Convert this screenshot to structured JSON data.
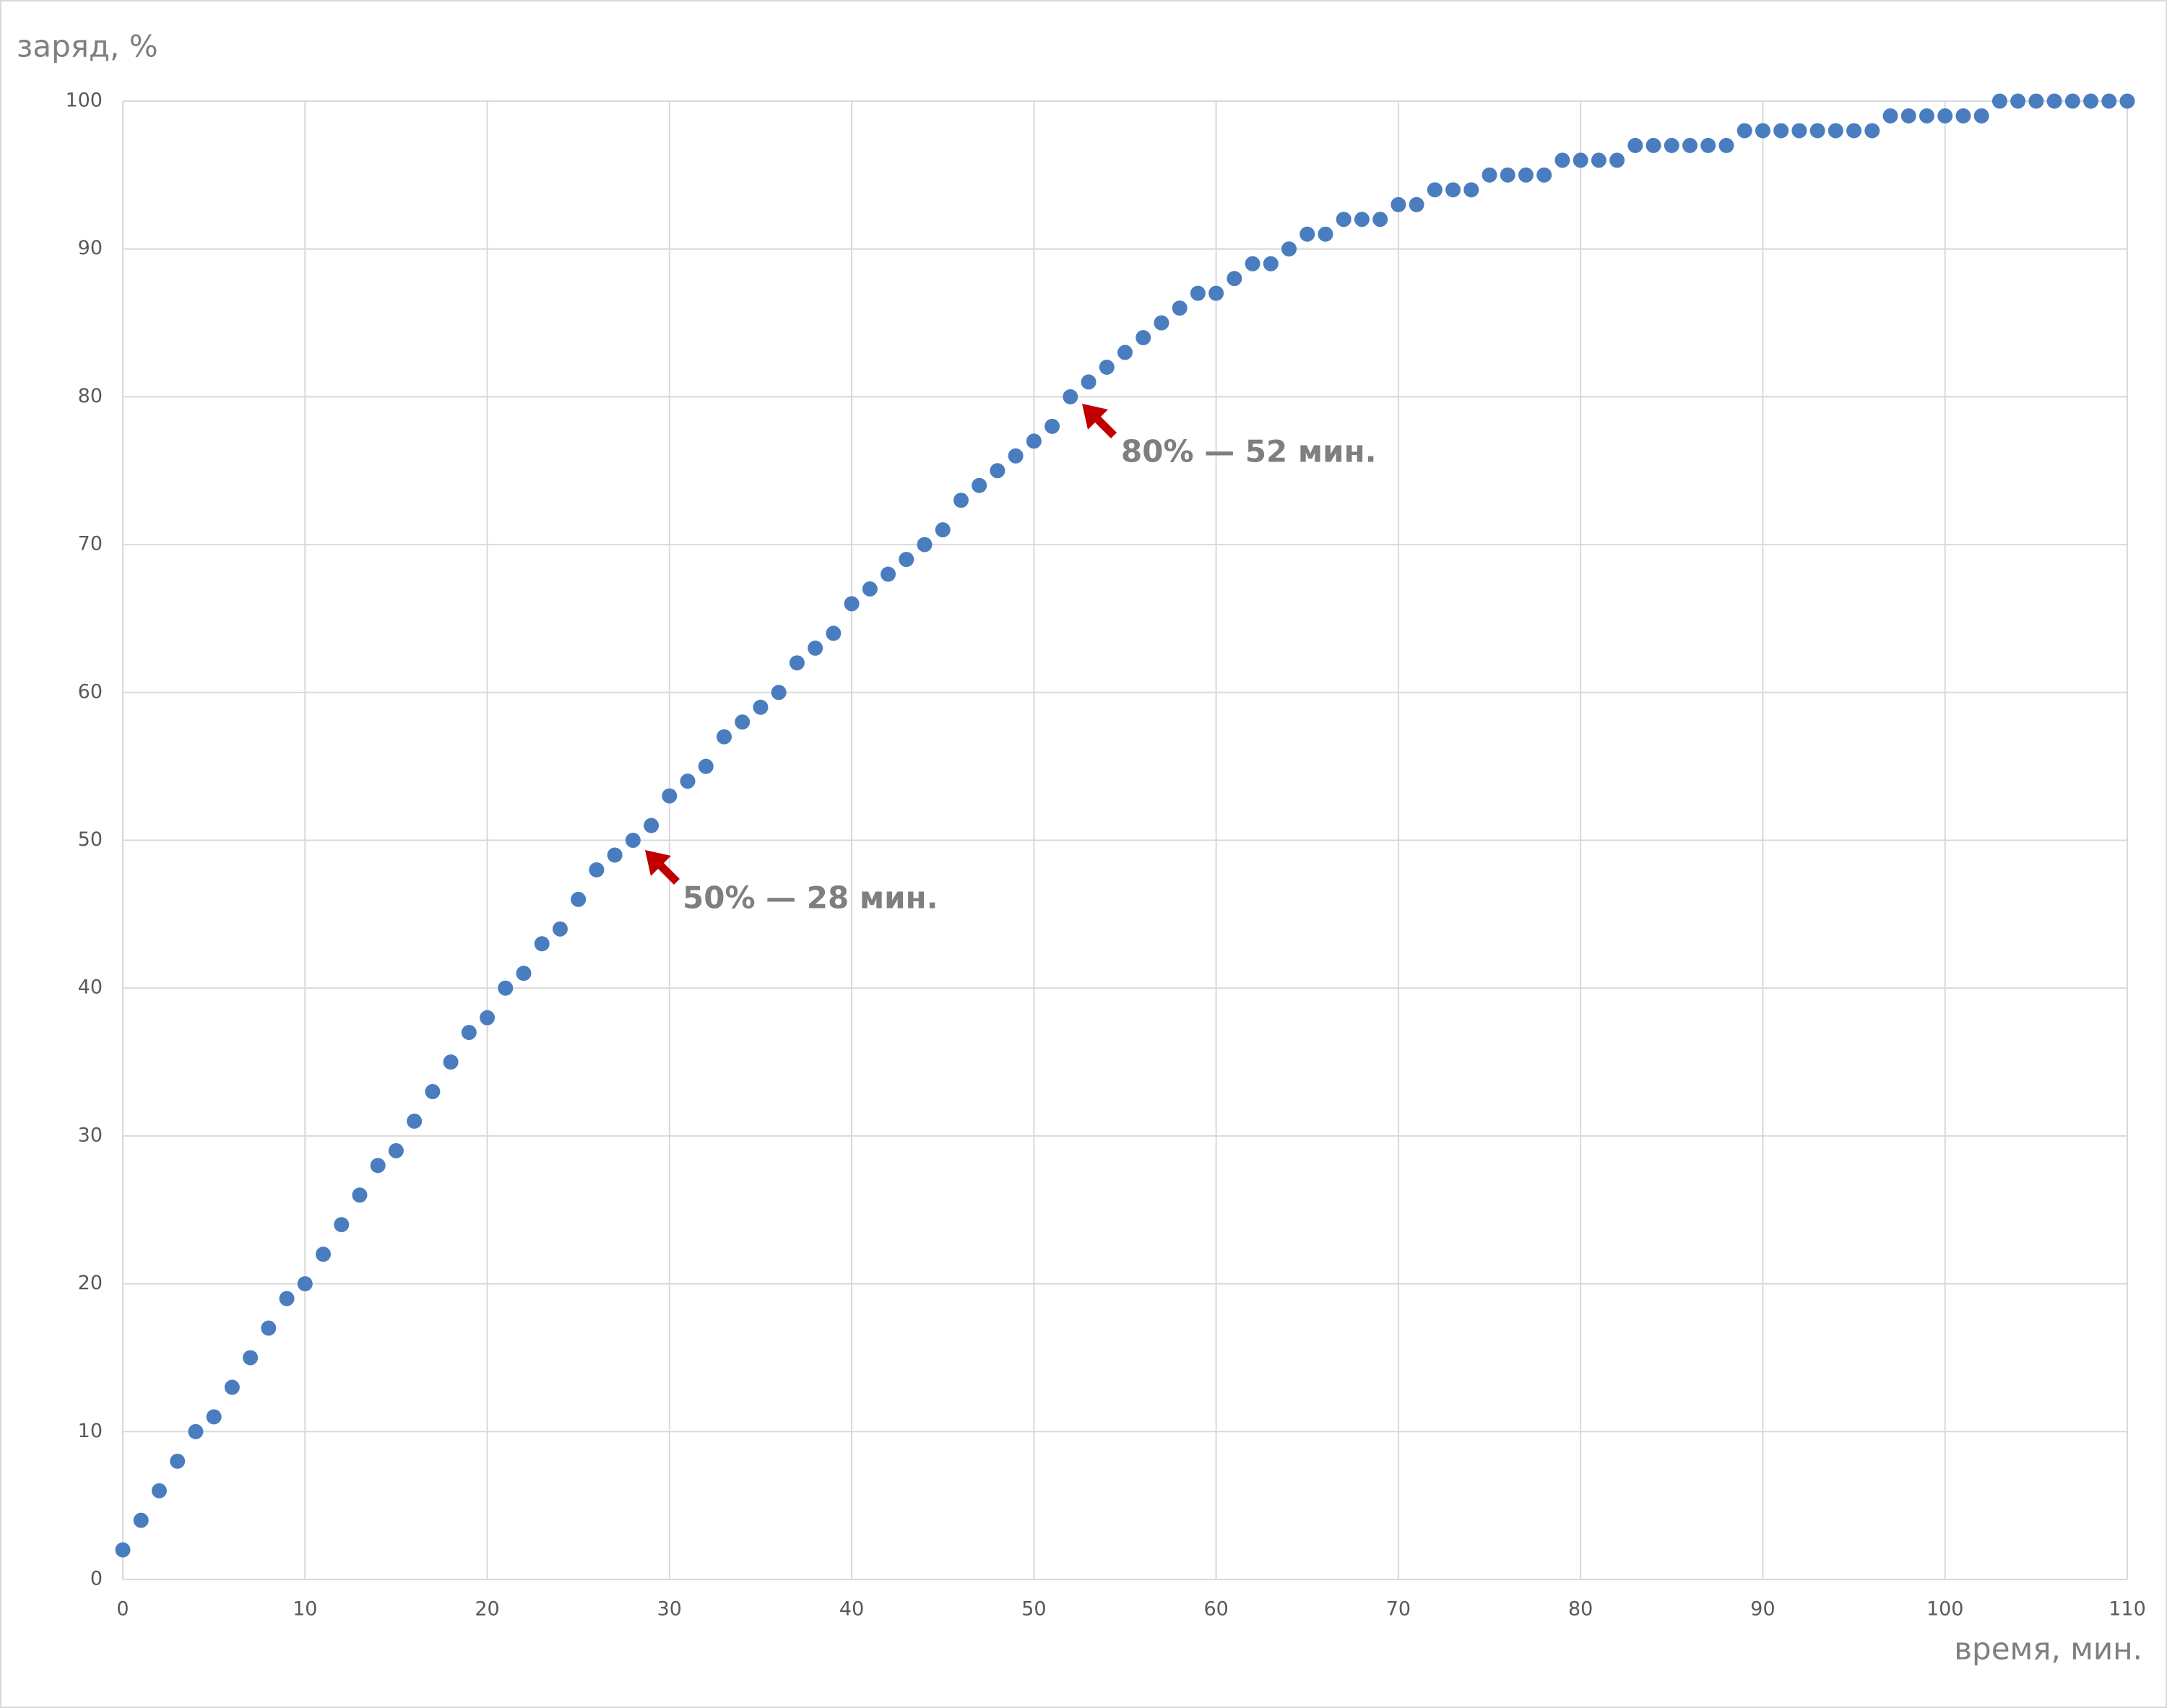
{
  "chart_data": {
    "type": "scatter",
    "y_label": "заряд, %",
    "x_label": "время, мин.",
    "annotations": [
      "80% — 52 мин.",
      "50% — 28 мин."
    ],
    "x": [
      0,
      1,
      2,
      3,
      4,
      5,
      6,
      7,
      8,
      9,
      10,
      11,
      12,
      13,
      14,
      15,
      16,
      17,
      18,
      19,
      20,
      21,
      22,
      23,
      24,
      25,
      26,
      27,
      28,
      29,
      30,
      31,
      32,
      33,
      34,
      35,
      36,
      37,
      38,
      39,
      40,
      41,
      42,
      43,
      44,
      45,
      46,
      47,
      48,
      49,
      50,
      51,
      52,
      53,
      54,
      55,
      56,
      57,
      58,
      59,
      60,
      61,
      62,
      63,
      64,
      65,
      66,
      67,
      68,
      69,
      70,
      71,
      72,
      73,
      74,
      75,
      76,
      77,
      78,
      79,
      80,
      81,
      82,
      83,
      84,
      85,
      86,
      87,
      88,
      89,
      90,
      91,
      92,
      93,
      94,
      95,
      96,
      97,
      98,
      99,
      100,
      101,
      102,
      103,
      104,
      105,
      106,
      107,
      108,
      109,
      110
    ],
    "values": [
      2,
      4,
      6,
      8,
      10,
      11,
      13,
      15,
      17,
      19,
      20,
      22,
      24,
      26,
      28,
      29,
      31,
      33,
      35,
      37,
      38,
      40,
      41,
      43,
      44,
      46,
      48,
      49,
      50,
      51,
      53,
      54,
      55,
      57,
      58,
      59,
      60,
      62,
      63,
      64,
      66,
      67,
      68,
      69,
      70,
      71,
      73,
      74,
      75,
      76,
      77,
      78,
      80,
      81,
      82,
      83,
      84,
      85,
      86,
      87,
      87,
      88,
      89,
      89,
      90,
      91,
      91,
      92,
      92,
      92,
      93,
      93,
      94,
      94,
      94,
      95,
      95,
      95,
      95,
      96,
      96,
      96,
      96,
      97,
      97,
      97,
      97,
      97,
      97,
      98,
      98,
      98,
      98,
      98,
      98,
      98,
      98,
      99,
      99,
      99,
      99,
      99,
      99,
      100,
      100,
      100,
      100,
      100,
      100,
      100,
      100
    ],
    "color": "#4a7dbf",
    "xlim": [
      0,
      110
    ],
    "xticks": [
      0,
      10,
      20,
      30,
      40,
      50,
      60,
      70,
      80,
      90,
      100,
      110
    ],
    "ylim": [
      0,
      100
    ],
    "yticks": [
      0,
      10,
      20,
      30,
      40,
      50,
      60,
      70,
      80,
      90,
      100
    ],
    "grid": true,
    "annotation_color": "#c00000"
  }
}
